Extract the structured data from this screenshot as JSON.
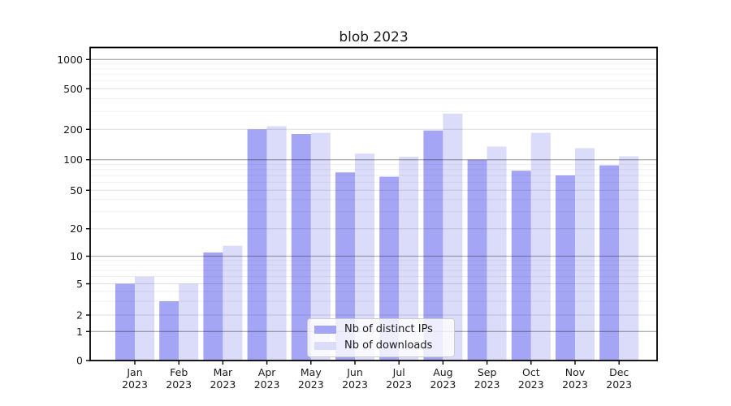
{
  "title": "blob 2023",
  "chart_data": {
    "type": "bar",
    "title": "blob 2023",
    "categories": [
      "Jan 2023",
      "Feb 2023",
      "Mar 2023",
      "Apr 2023",
      "May 2023",
      "Jun 2023",
      "Jul 2023",
      "Aug 2023",
      "Sep 2023",
      "Oct 2023",
      "Nov 2023",
      "Dec 2023"
    ],
    "series": [
      {
        "name": "Nb of distinct IPs",
        "color": "#a5a5f5",
        "values": [
          5,
          3,
          11,
          200,
          180,
          75,
          68,
          195,
          100,
          78,
          70,
          88
        ]
      },
      {
        "name": "Nb of downloads",
        "color": "#dbdbfa",
        "values": [
          6,
          5,
          13,
          215,
          185,
          115,
          107,
          285,
          135,
          185,
          130,
          108
        ]
      }
    ],
    "xlabel": "",
    "ylabel": "",
    "yscale": "symlog-like",
    "yticks": [
      0,
      1,
      2,
      5,
      10,
      20,
      50,
      100,
      200,
      500,
      1000
    ],
    "ylim": [
      0,
      1350
    ],
    "grid": true,
    "minor_grid": true,
    "legend_position": "lower center"
  },
  "colors": {
    "decade_grid": "rgba(0,0,0,0.30)",
    "tick_grid": "rgba(0,0,0,0.13)",
    "minor_grid": "rgba(0,0,0,0.06)",
    "spine": "#000000",
    "text": "#1a1a1a",
    "legend_border": "#cccccc",
    "legend_bg": "rgba(255,255,255,0.8)"
  }
}
